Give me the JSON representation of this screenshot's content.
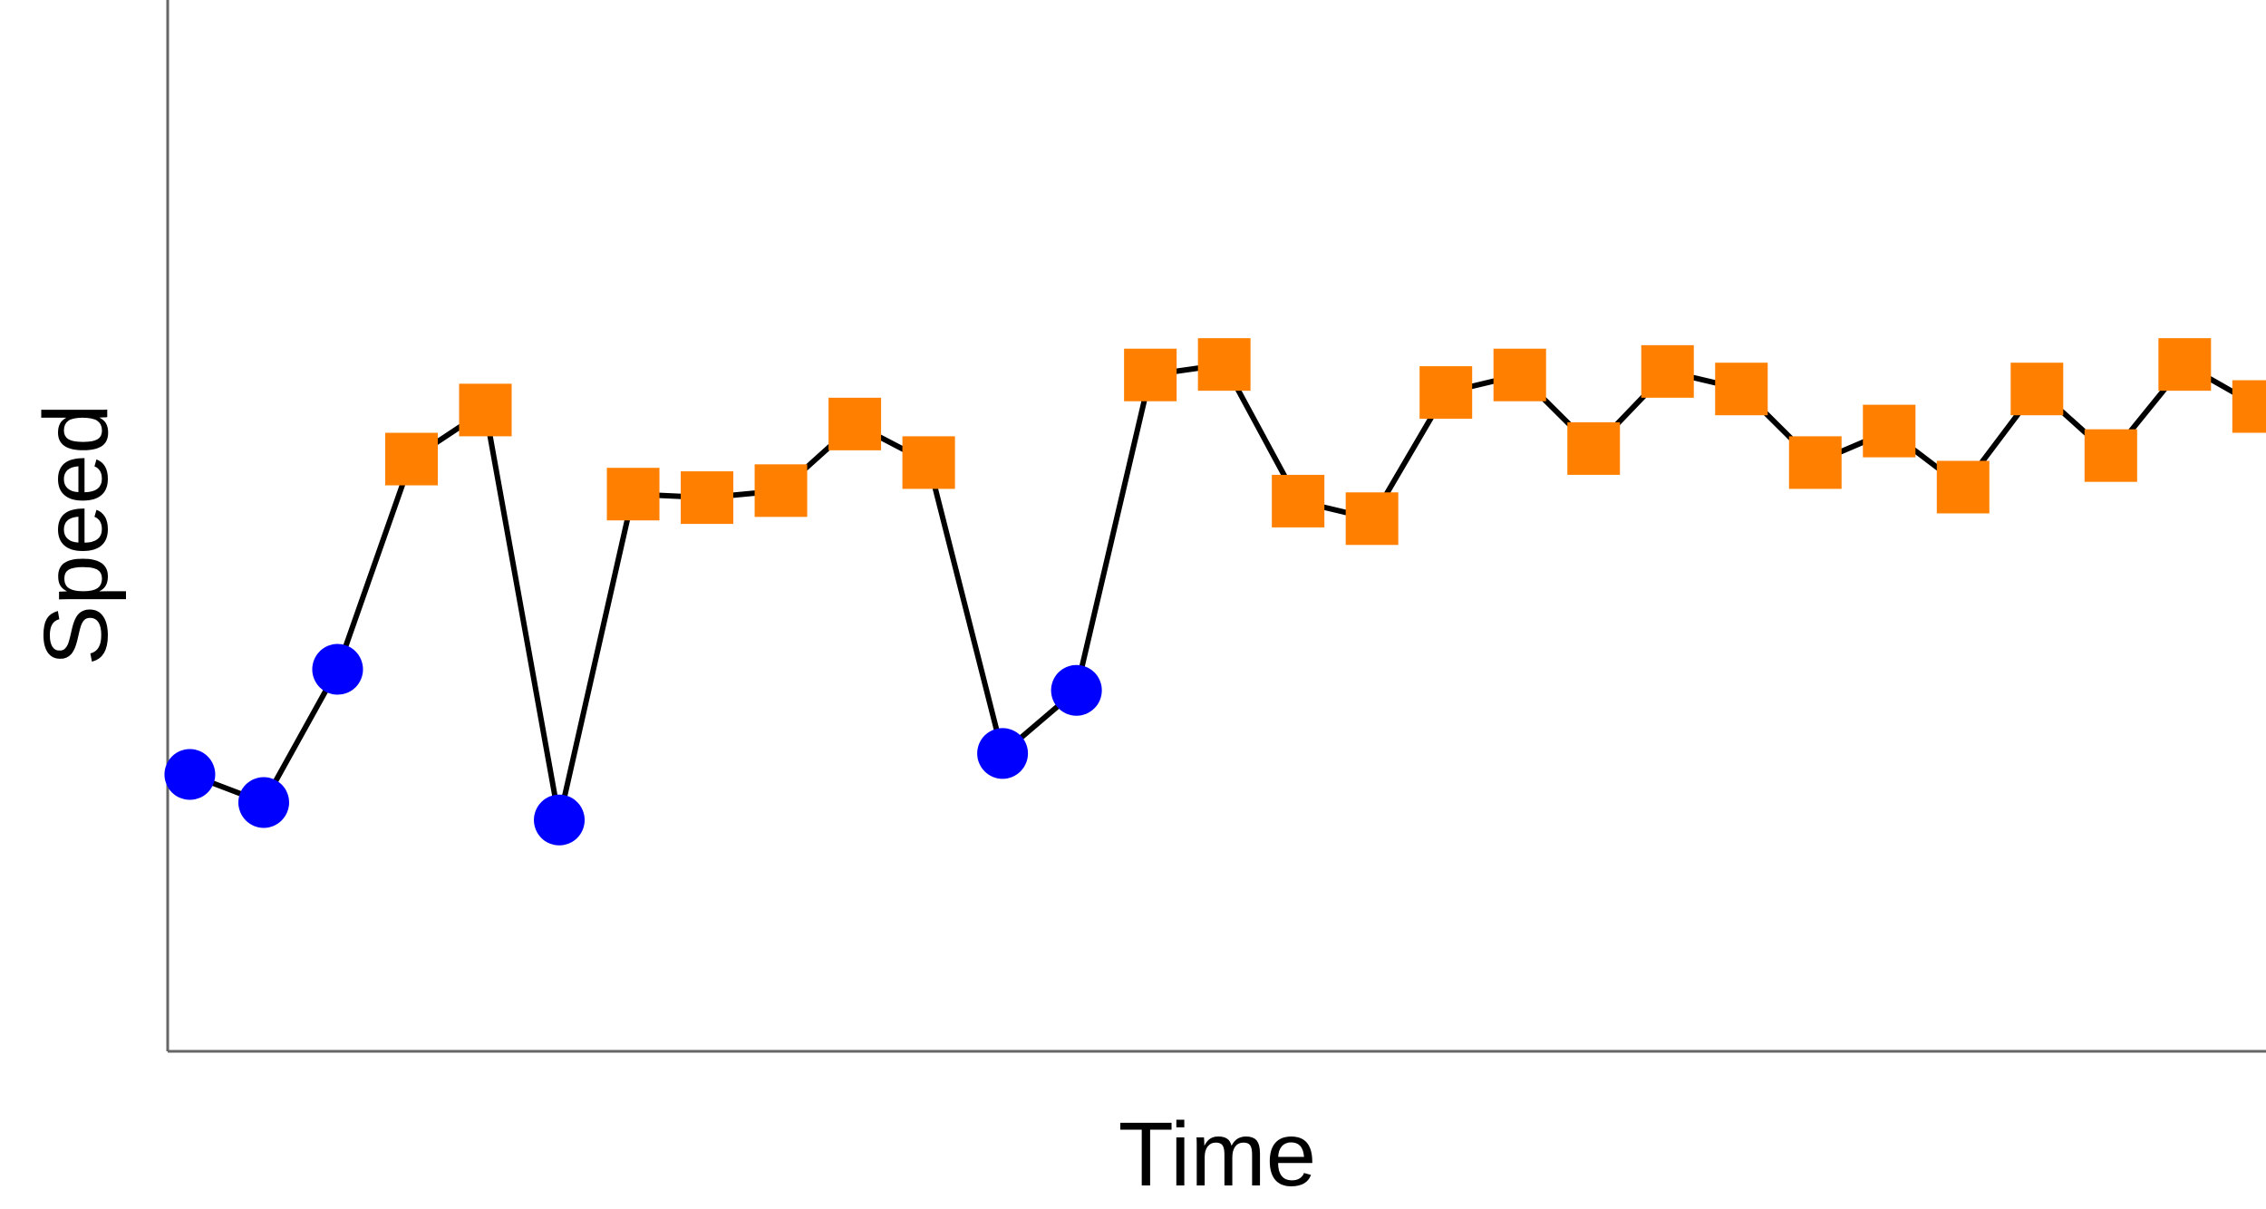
{
  "chart_data": {
    "type": "line",
    "title": "",
    "xlabel": "Time",
    "ylabel": "Speed",
    "xlim": [
      0.7,
      29.1
    ],
    "ylim": [
      0,
      30
    ],
    "grid": false,
    "legend": "none",
    "x_ticks_visible": false,
    "y_ticks_visible": false,
    "line_color": "#000000",
    "marker_styles": {
      "circle": {
        "color": "#0000ff",
        "shape": "circle"
      },
      "square": {
        "color": "#ff8000",
        "shape": "square"
      }
    },
    "x": [
      1,
      2,
      3,
      4,
      5,
      6,
      7,
      8,
      9,
      10,
      11,
      12,
      13,
      14,
      15,
      16,
      17,
      18,
      19,
      20,
      21,
      22,
      23,
      24,
      25,
      26,
      27,
      28,
      29
    ],
    "y": [
      7.9,
      7.1,
      10.9,
      16.9,
      18.3,
      6.6,
      15.9,
      15.8,
      16.0,
      17.9,
      16.8,
      8.5,
      10.3,
      19.3,
      19.6,
      15.7,
      15.2,
      18.8,
      19.3,
      17.2,
      19.4,
      18.9,
      16.8,
      17.7,
      16.1,
      18.9,
      17.0,
      19.6,
      18.4
    ],
    "markers": [
      "circle",
      "circle",
      "circle",
      "square",
      "square",
      "circle",
      "square",
      "square",
      "square",
      "square",
      "square",
      "circle",
      "circle",
      "square",
      "square",
      "square",
      "square",
      "square",
      "square",
      "square",
      "square",
      "square",
      "square",
      "square",
      "square",
      "square",
      "square",
      "square",
      "square"
    ]
  }
}
